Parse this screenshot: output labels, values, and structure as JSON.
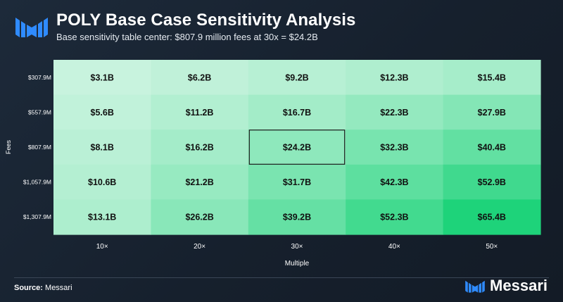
{
  "header": {
    "title": "POLY Base Case Sensitivity Analysis",
    "subtitle": "Base sensitivity table center: $807.9 million fees at 30x = $24.2B"
  },
  "footer": {
    "source_label": "Source:",
    "source_name": "Messari",
    "brand_name": "Messari"
  },
  "colors": {
    "brand_blue": "#2f8bff",
    "low": "#c8f3de",
    "high": "#1ed37a",
    "highlight_border": "#1a1a1a"
  },
  "chart_data": {
    "type": "heatmap",
    "title": "POLY Base Case Sensitivity Analysis",
    "subtitle": "Base sensitivity table center: $807.9 million fees at 30x = $24.2B",
    "xlabel": "Multiple",
    "ylabel": "Fees",
    "x_categories": [
      "10×",
      "20×",
      "30×",
      "40×",
      "50×"
    ],
    "y_categories": [
      "$307.9M",
      "$557.9M",
      "$807.9M",
      "$1,057.9M",
      "$1,307.9M"
    ],
    "values": [
      [
        3.1,
        6.2,
        9.2,
        12.3,
        15.4
      ],
      [
        5.6,
        11.2,
        16.7,
        22.3,
        27.9
      ],
      [
        8.1,
        16.2,
        24.2,
        32.3,
        40.4
      ],
      [
        10.6,
        21.2,
        31.7,
        42.3,
        52.9
      ],
      [
        13.1,
        26.2,
        39.2,
        52.3,
        65.4
      ]
    ],
    "labels": [
      [
        "$3.1B",
        "$6.2B",
        "$9.2B",
        "$12.3B",
        "$15.4B"
      ],
      [
        "$5.6B",
        "$11.2B",
        "$16.7B",
        "$22.3B",
        "$27.9B"
      ],
      [
        "$8.1B",
        "$16.2B",
        "$24.2B",
        "$32.3B",
        "$40.4B"
      ],
      [
        "$10.6B",
        "$21.2B",
        "$31.7B",
        "$42.3B",
        "$52.9B"
      ],
      [
        "$13.1B",
        "$26.2B",
        "$39.2B",
        "$52.3B",
        "$65.4B"
      ]
    ],
    "highlight": {
      "row": 2,
      "col": 2
    }
  }
}
